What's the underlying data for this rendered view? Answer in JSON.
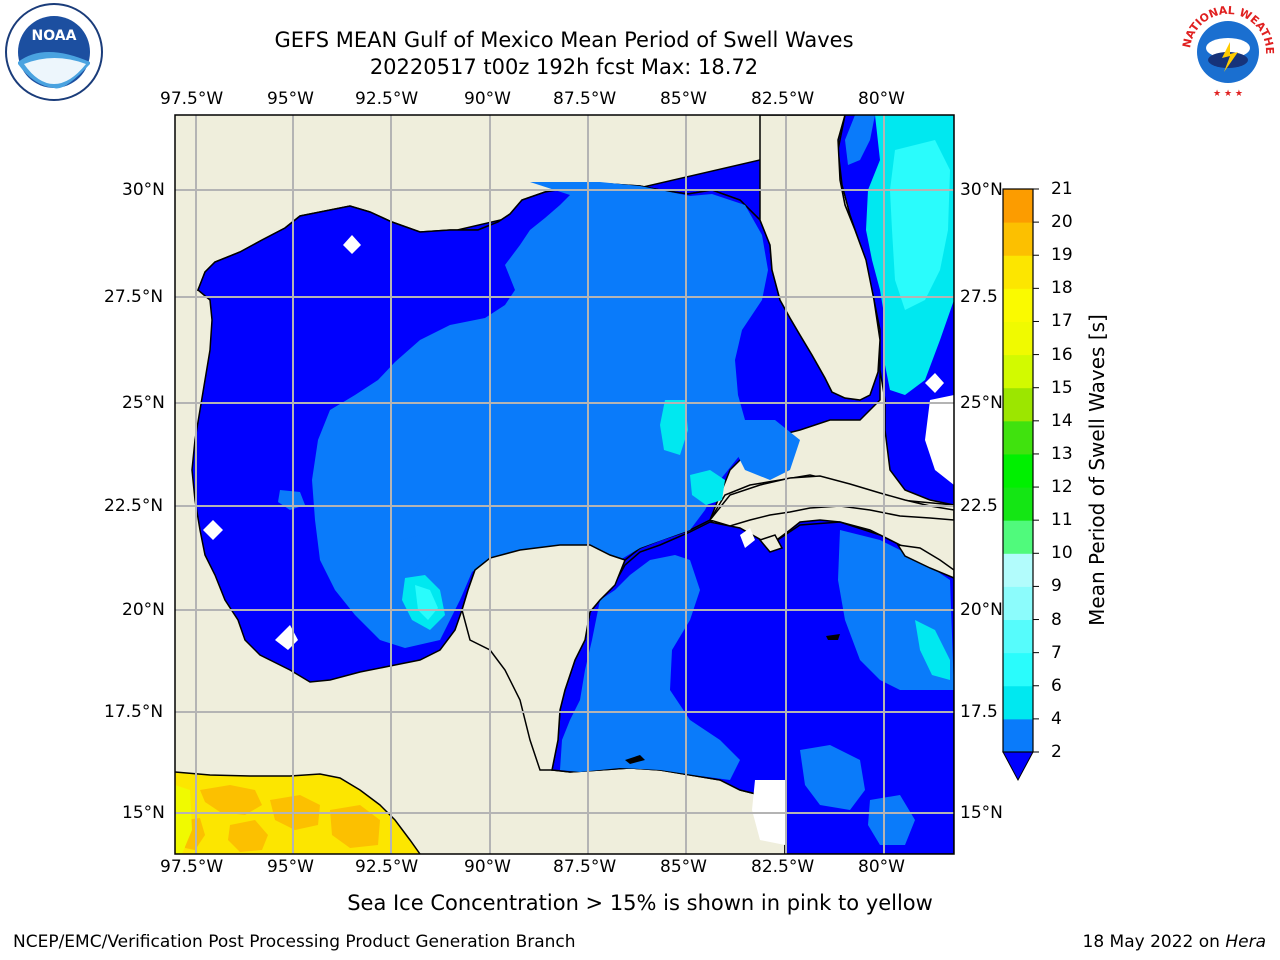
{
  "title": {
    "line1": "GEFS MEAN Gulf of Mexico Mean Period of Swell Waves",
    "line2": "20220517 t00z 192h fcst   Max: 18.72"
  },
  "map": {
    "lon_labels": [
      "97.5°W",
      "95°W",
      "92.5°W",
      "90°W",
      "87.5°W",
      "85°W",
      "82.5°W",
      "80°W"
    ],
    "lat_labels_left": [
      "30°N",
      "27.5°N",
      "25°N",
      "22.5°N",
      "20°N",
      "17.5°N",
      "15°N"
    ],
    "lat_labels_right": [
      "30°N",
      "27.5",
      "25°N",
      "22.5",
      "20°N",
      "17.5",
      "15°N"
    ],
    "colors": {
      "land": "#efeedc",
      "ocean_base": "#0000ff",
      "gridline": "#b4b4b4"
    }
  },
  "colorbar": {
    "title": "Mean Period of Swell Waves [s]",
    "ticks": [
      "2",
      "4",
      "6",
      "7",
      "8",
      "9",
      "10",
      "11",
      "12",
      "13",
      "14",
      "15",
      "16",
      "17",
      "18",
      "19",
      "20",
      "21"
    ],
    "colors": [
      "#0a7bfa",
      "#00e8f0",
      "#2afcfc",
      "#56fcfc",
      "#8cfcfc",
      "#b2fcfc",
      "#50fa7c",
      "#14e614",
      "#00f000",
      "#40e20e",
      "#9ce600",
      "#d2fa00",
      "#f0fa00",
      "#fafa00",
      "#fce600",
      "#fcc000",
      "#fc9c00",
      "#fc7a00",
      "#fc4c00",
      "#fc2000"
    ],
    "underflow_color": "#0000ff"
  },
  "note": "Sea Ice Concentration > 15% is shown in pink to yellow",
  "footer": {
    "left": "NCEP/EMC/Verification Post Processing Product Generation Branch",
    "right_text": "18 May 2022 on ",
    "right_italic": "Hera"
  },
  "logos": {
    "noaa_text": "NOAA",
    "nws_text": "NATIONAL WEATHER SERVICE"
  }
}
